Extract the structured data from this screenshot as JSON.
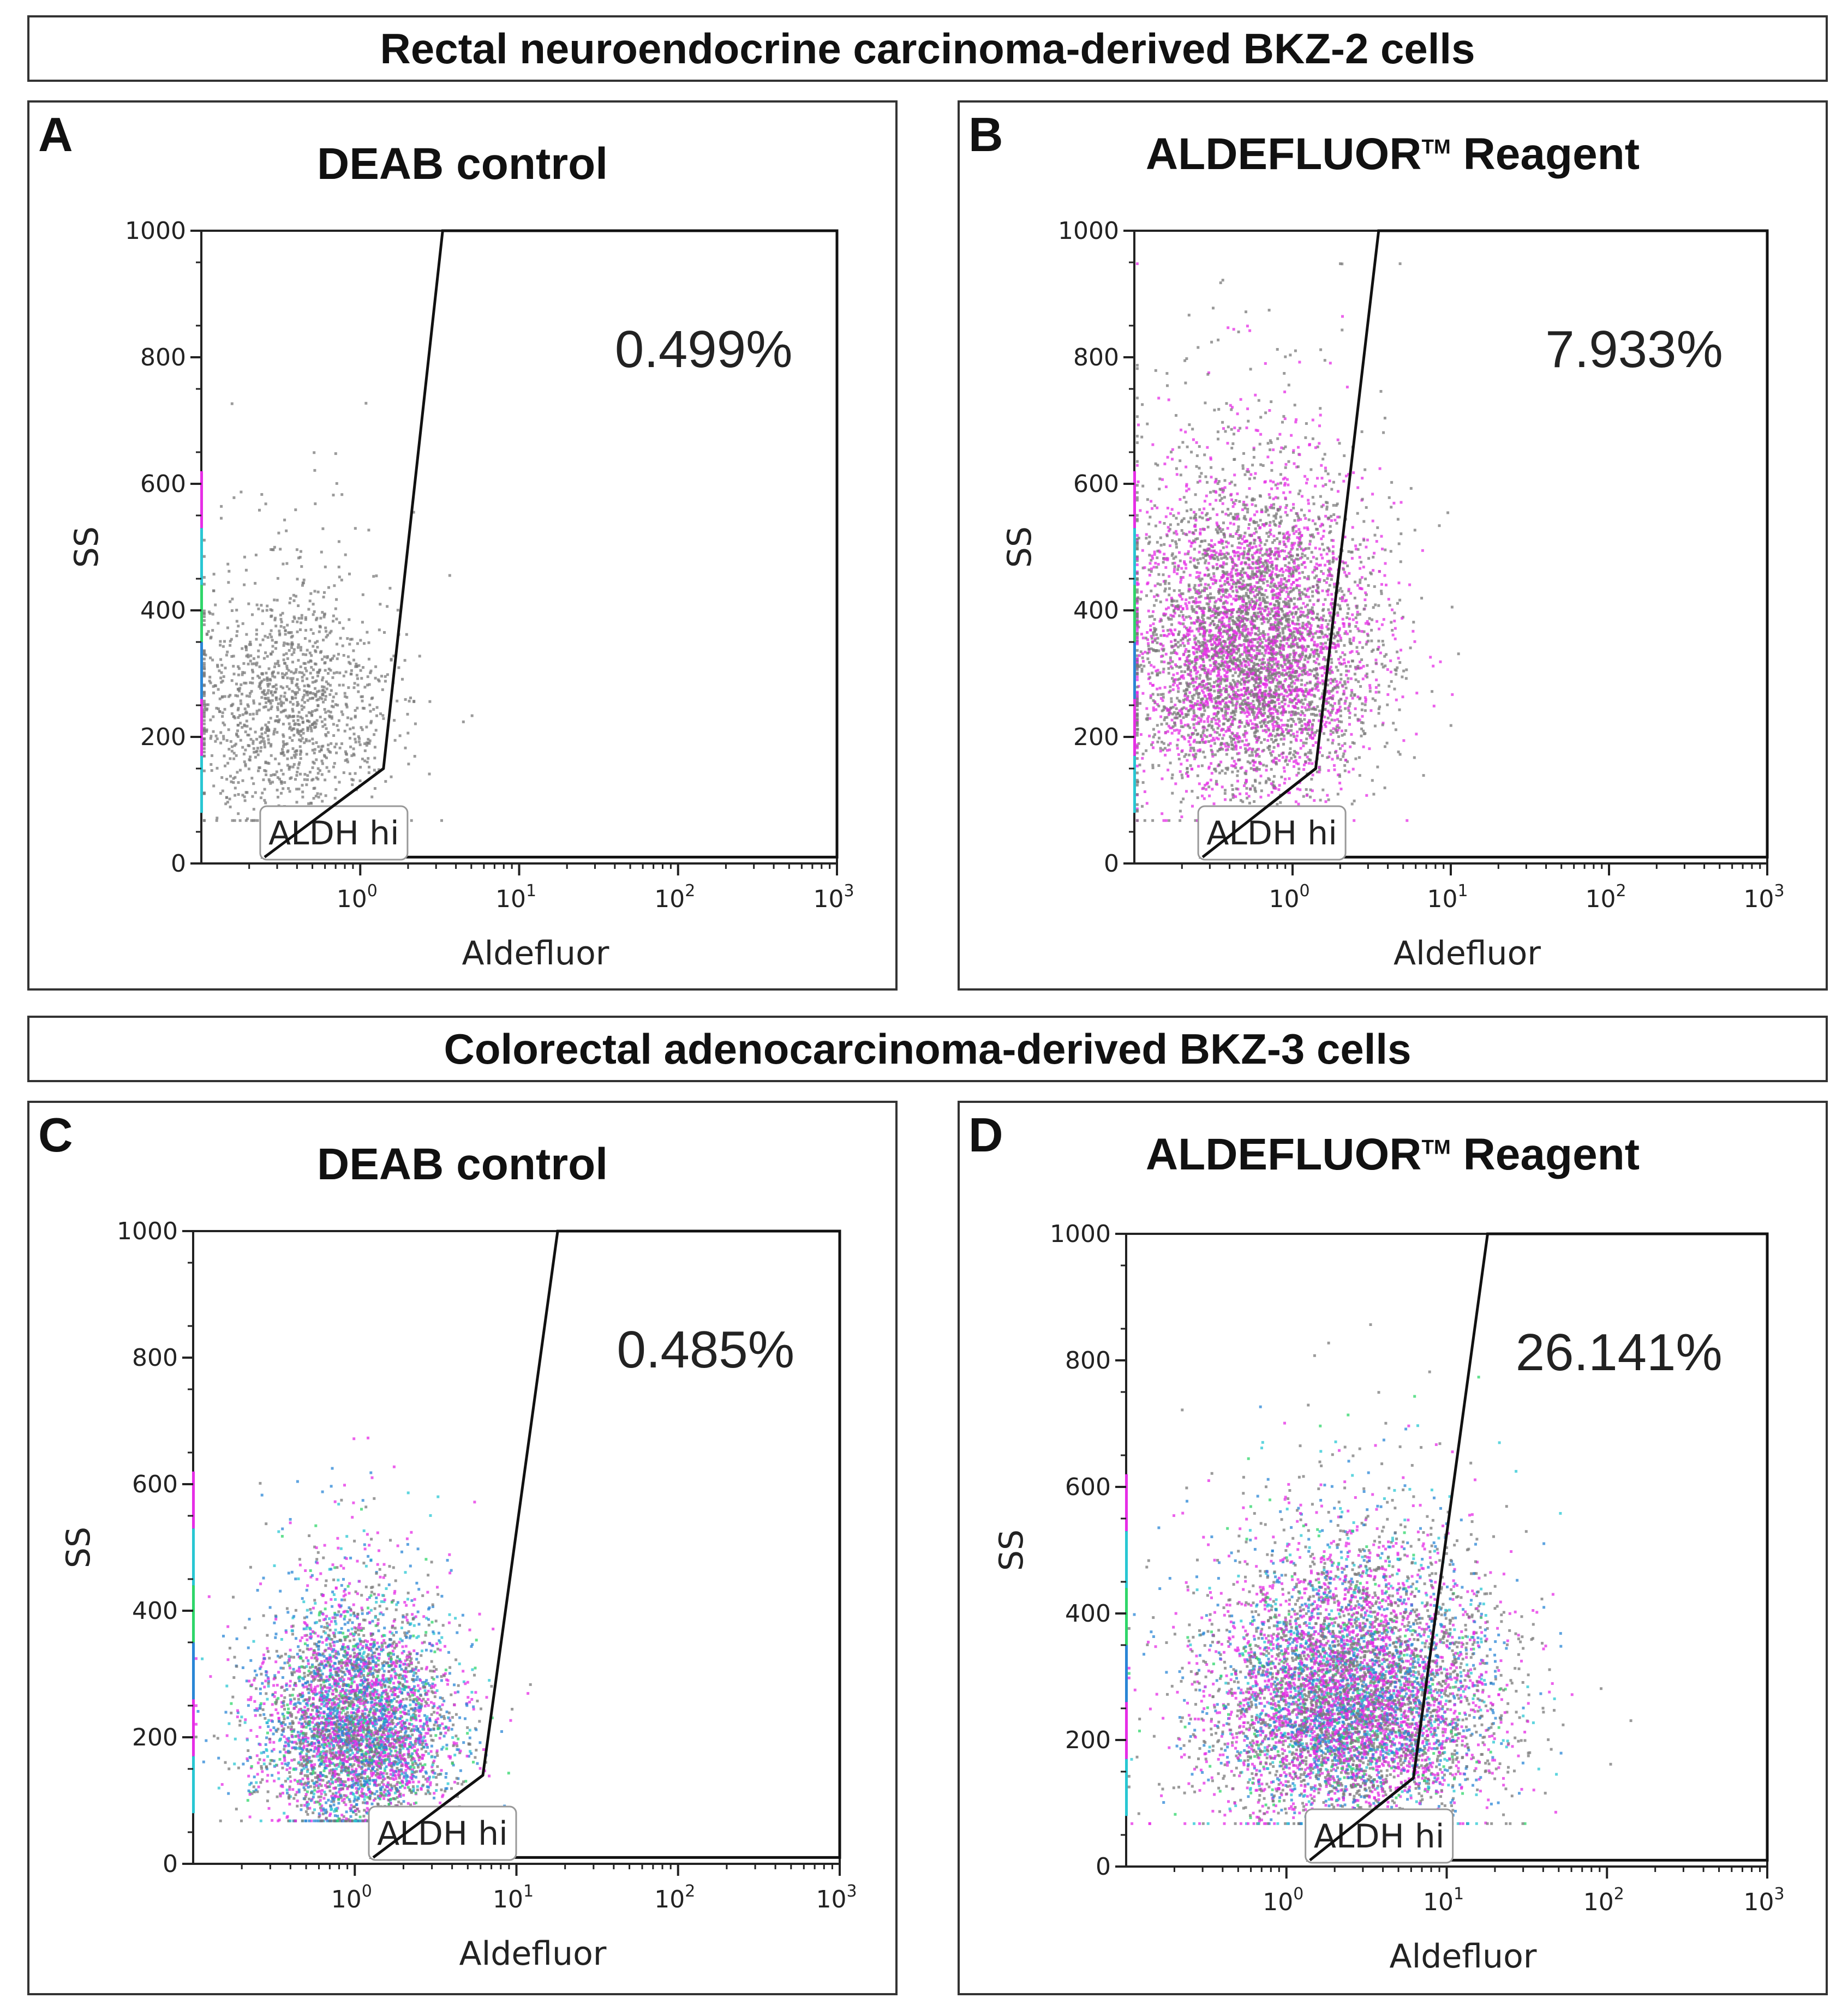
{
  "headers": {
    "top": "Rectal neuroendocrine carcinoma-derived BKZ-2 cells",
    "bottom": "Colorectal adenocarcinoma-derived BKZ-3 cells"
  },
  "colors": {
    "gray": "#7a7a7a",
    "magenta": "#e62ee6",
    "blue": "#2a86d6",
    "cyan": "#29c7d3",
    "green": "#2fd66a"
  },
  "chart_data": [
    {
      "type": "scatter",
      "panel": "A",
      "title": "DEAB control",
      "xlabel": "Aldefluor",
      "ylabel": "SS",
      "xscale": "log",
      "xlim": [
        0.1,
        1000
      ],
      "ylim": [
        0,
        1000
      ],
      "yticks": [
        "0",
        "200",
        "400",
        "600",
        "800",
        "1000"
      ],
      "xticks": [
        {
          "base": "10",
          "exp": "0"
        },
        {
          "base": "10",
          "exp": "1"
        },
        {
          "base": "10",
          "exp": "2"
        },
        {
          "base": "10",
          "exp": "3"
        }
      ],
      "gate": {
        "label": "ALDH hi",
        "percent": "0.499%",
        "vertices": [
          [
            0.25,
            10
          ],
          [
            1.4,
            150
          ],
          [
            3.3,
            1000
          ],
          [
            1000,
            1000
          ],
          [
            1000,
            10
          ]
        ]
      },
      "population": {
        "center": [
          0.35,
          220
        ],
        "spread_log": 0.32,
        "spread_y": 110,
        "count": 1300,
        "colored_fraction": 0.0,
        "pink_fraction": 0.0
      }
    },
    {
      "type": "scatter",
      "panel": "B",
      "title": "ALDEFLUOR",
      "title_sup": "TM",
      "title_rest": " Reagent",
      "xlabel": "Aldefluor",
      "ylabel": "SS",
      "xscale": "log",
      "xlim": [
        0.1,
        1000
      ],
      "ylim": [
        0,
        1000
      ],
      "yticks": [
        "0",
        "200",
        "400",
        "600",
        "800",
        "1000"
      ],
      "xticks": [
        {
          "base": "10",
          "exp": "0"
        },
        {
          "base": "10",
          "exp": "1"
        },
        {
          "base": "10",
          "exp": "2"
        },
        {
          "base": "10",
          "exp": "3"
        }
      ],
      "gate": {
        "label": "ALDH hi",
        "percent": "7.933%",
        "vertices": [
          [
            0.27,
            10
          ],
          [
            1.4,
            150
          ],
          [
            3.5,
            1000
          ],
          [
            1000,
            1000
          ],
          [
            1000,
            10
          ]
        ]
      },
      "population": {
        "center": [
          0.55,
          300
        ],
        "spread_log": 0.38,
        "spread_y": 140,
        "count": 5500,
        "colored_fraction": 0.45,
        "pink_fraction": 1.0
      }
    },
    {
      "type": "scatter",
      "panel": "C",
      "title": "DEAB control",
      "xlabel": "Aldefluor",
      "ylabel": "SS",
      "xscale": "log",
      "xlim": [
        0.1,
        1000
      ],
      "ylim": [
        0,
        1000
      ],
      "yticks": [
        "0",
        "200",
        "400",
        "600",
        "800",
        "1000"
      ],
      "xticks": [
        {
          "base": "10",
          "exp": "0"
        },
        {
          "base": "10",
          "exp": "1"
        },
        {
          "base": "10",
          "exp": "2"
        },
        {
          "base": "10",
          "exp": "3"
        }
      ],
      "gate": {
        "label": "ALDH hi",
        "percent": "0.485%",
        "vertices": [
          [
            1.3,
            10
          ],
          [
            6.2,
            140
          ],
          [
            18,
            1000
          ],
          [
            1000,
            1000
          ],
          [
            1000,
            10
          ]
        ]
      },
      "population": {
        "center": [
          1.0,
          190
        ],
        "spread_log": 0.3,
        "spread_y": 100,
        "count": 4500,
        "colored_fraction": 0.7,
        "pink_fraction": 0.45
      }
    },
    {
      "type": "scatter",
      "panel": "D",
      "title": "ALDEFLUOR",
      "title_sup": "TM",
      "title_rest": " Reagent",
      "xlabel": "Aldefluor",
      "ylabel": "SS",
      "xscale": "log",
      "xlim": [
        0.1,
        1000
      ],
      "ylim": [
        0,
        1000
      ],
      "yticks": [
        "0",
        "200",
        "400",
        "600",
        "800",
        "1000"
      ],
      "xticks": [
        {
          "base": "10",
          "exp": "0"
        },
        {
          "base": "10",
          "exp": "1"
        },
        {
          "base": "10",
          "exp": "2"
        },
        {
          "base": "10",
          "exp": "3"
        }
      ],
      "gate": {
        "label": "ALDH hi",
        "percent": "26.141%",
        "vertices": [
          [
            1.4,
            10
          ],
          [
            6.2,
            140
          ],
          [
            18,
            1000
          ],
          [
            1000,
            1000
          ],
          [
            1000,
            10
          ]
        ]
      },
      "population": {
        "center": [
          2.5,
          230
        ],
        "spread_log": 0.45,
        "spread_y": 120,
        "count": 7000,
        "colored_fraction": 0.65,
        "pink_fraction": 0.55
      }
    }
  ]
}
